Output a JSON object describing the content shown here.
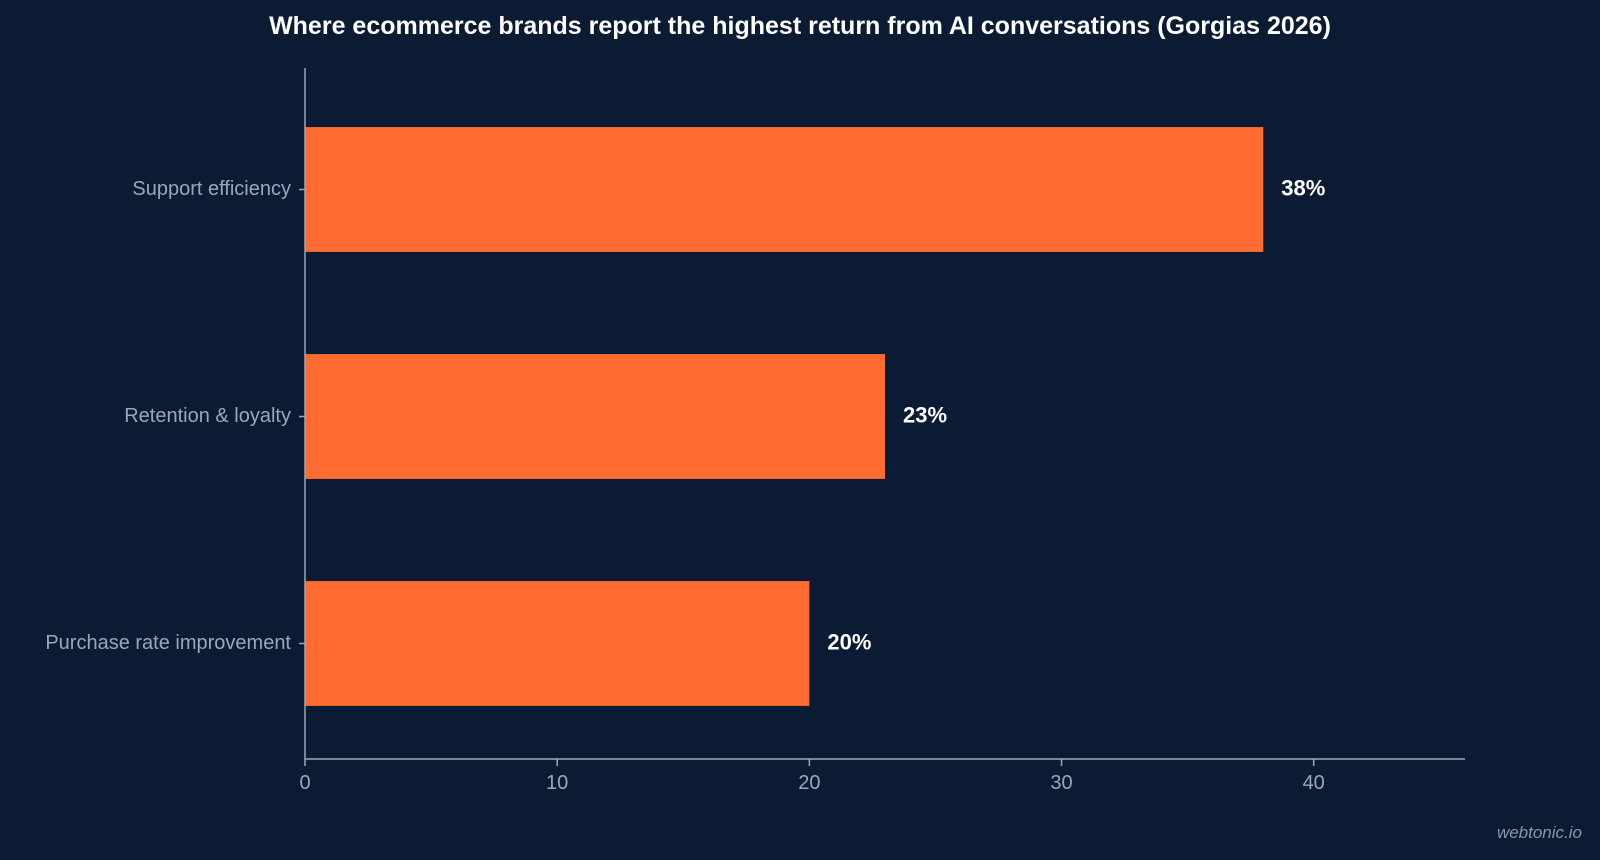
{
  "chart_data": {
    "type": "bar",
    "orientation": "horizontal",
    "title": "Where ecommerce brands report the highest return from AI conversations (Gorgias 2026)",
    "categories": [
      "Support efficiency",
      "Retention & loyalty",
      "Purchase rate improvement"
    ],
    "values": [
      38,
      23,
      20
    ],
    "data_labels": [
      "38%",
      "23%",
      "20%"
    ],
    "xlabel": "",
    "ylabel": "",
    "xlim": [
      0,
      46
    ],
    "x_ticks": [
      0,
      10,
      20,
      30,
      40
    ],
    "grid": false,
    "legend": "none",
    "colors": {
      "background": "#0c1b34",
      "bar": "#ff6b30",
      "axis": "#9aa6ba",
      "tick_label": "#9aa6ba",
      "data_label": "#ffffff"
    }
  },
  "watermark": "webtonic.io"
}
